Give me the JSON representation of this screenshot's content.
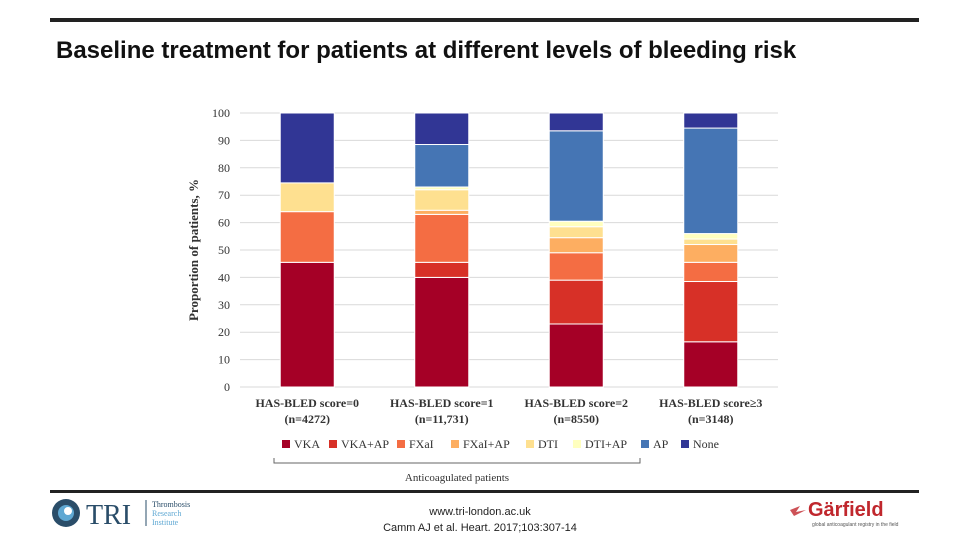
{
  "page": {
    "title": "Baseline treatment for patients at different levels of bleeding risk",
    "footer_url": "www.tri-london.ac.uk",
    "footer_citation": "Camm AJ et al. Heart. 2017;103:307-14"
  },
  "logos": {
    "tri": {
      "letters": "TRI",
      "line1": "Thrombosis",
      "line2": "Research",
      "line3": "Institute",
      "color": "#2a4d69"
    },
    "garfield": {
      "name": "Gärfield",
      "tagline": "global anticoagulant registry in the field",
      "color": "#c0272d"
    }
  },
  "chart_data": {
    "type": "bar",
    "stacked": true,
    "ylabel": "Proportion of patients, %",
    "ylim": [
      0,
      100
    ],
    "yticks": [
      0,
      10,
      20,
      30,
      40,
      50,
      60,
      70,
      80,
      90,
      100
    ],
    "grid": true,
    "categories": [
      {
        "line1": "HAS-BLED score=0",
        "line2": "(n=4272)"
      },
      {
        "line1": "HAS-BLED score=1",
        "line2": "(n=11,731)"
      },
      {
        "line1": "HAS-BLED score=2",
        "line2": "(n=8550)"
      },
      {
        "line1": "HAS-BLED score≥3",
        "line2": "(n=3148)"
      }
    ],
    "series": [
      {
        "name": "VKA",
        "color": "#a50026",
        "values": [
          45.5,
          40,
          23,
          16.5
        ]
      },
      {
        "name": "VKA+AP",
        "color": "#d73027",
        "values": [
          0,
          5.5,
          16,
          22
        ]
      },
      {
        "name": "FXaI",
        "color": "#f46d43",
        "values": [
          18.5,
          17.5,
          10,
          7
        ]
      },
      {
        "name": "FXaI+AP",
        "color": "#fdae61",
        "values": [
          0,
          1.5,
          5.5,
          6.5
        ]
      },
      {
        "name": "DTI",
        "color": "#fee090",
        "values": [
          10.5,
          7.5,
          4,
          2
        ]
      },
      {
        "name": "DTI+AP",
        "color": "#ffffbf",
        "values": [
          0,
          1,
          2,
          2
        ]
      },
      {
        "name": "AP",
        "color": "#4575b4",
        "values": [
          0,
          15.5,
          33,
          38.5
        ]
      },
      {
        "name": "None",
        "color": "#313695",
        "values": [
          25.5,
          11.5,
          6.5,
          5.5
        ]
      }
    ],
    "legend_position": "bottom",
    "bracket_label": "Anticoagulated patients"
  }
}
